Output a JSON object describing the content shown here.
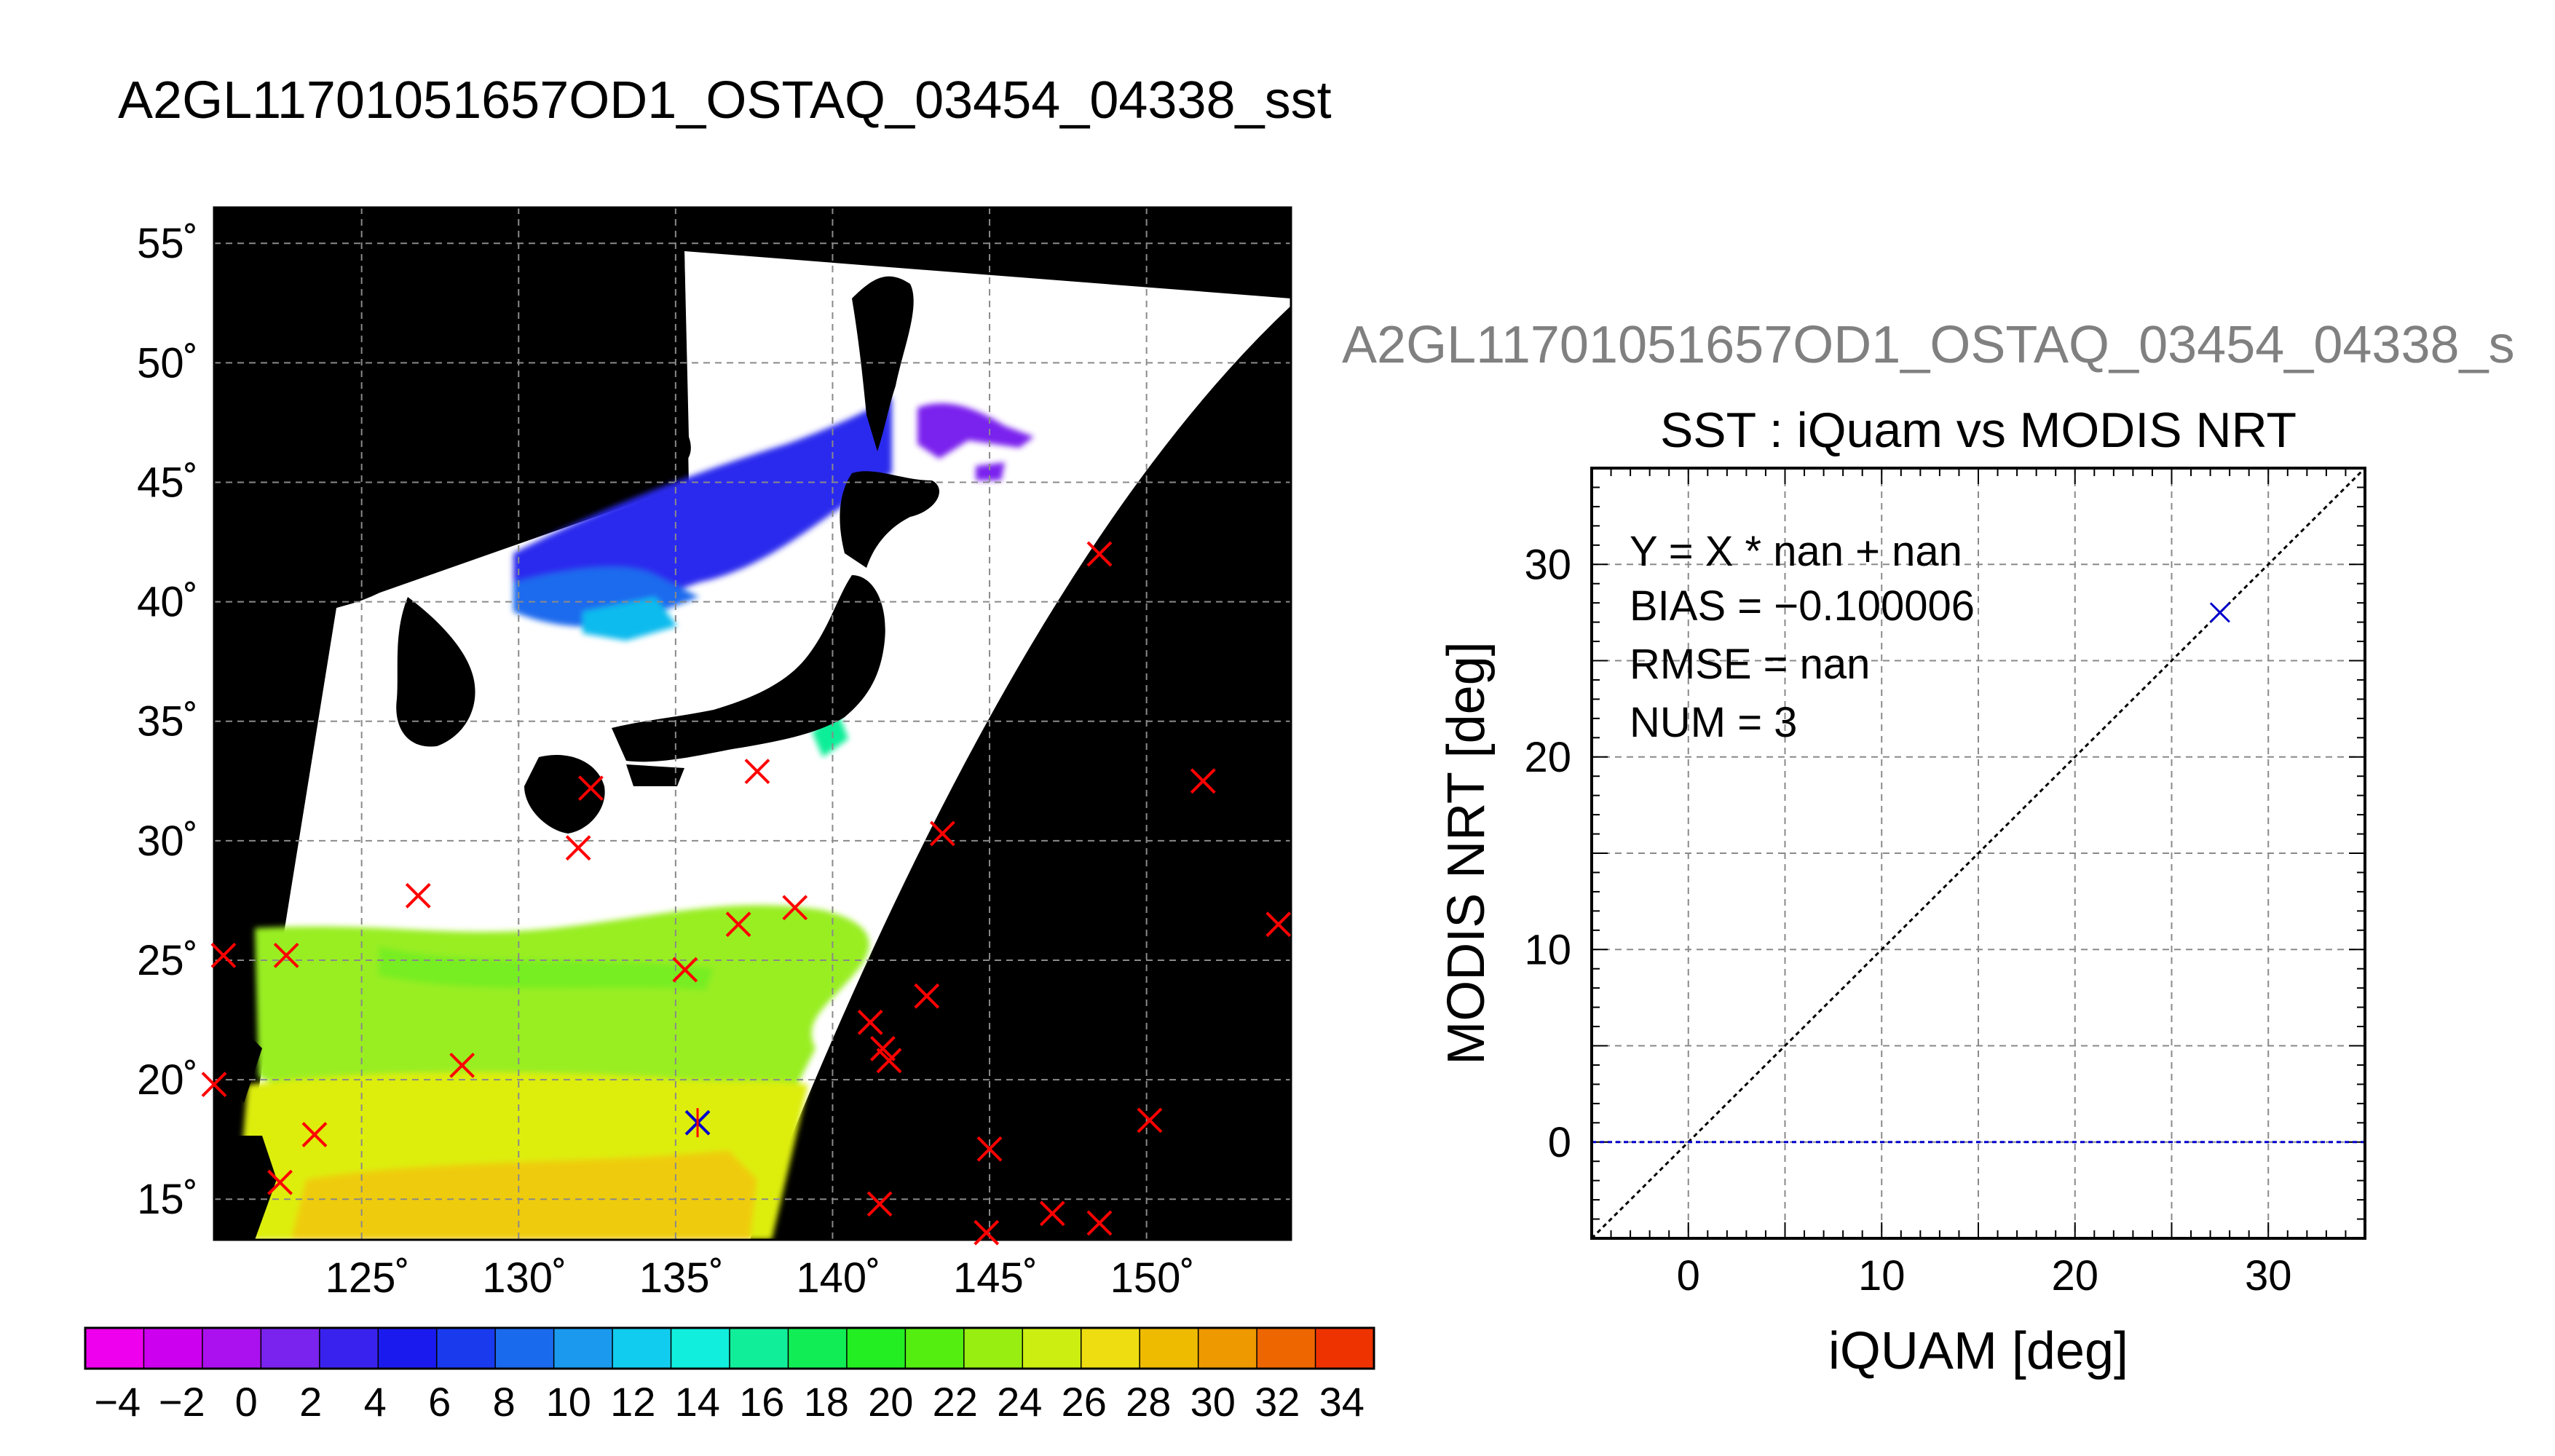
{
  "main_title": "A2GL11701051657OD1_OSTAQ_03454_04338_sst",
  "map": {
    "lon_ticks": [
      125,
      130,
      135,
      140,
      145,
      150
    ],
    "lat_ticks": [
      15,
      20,
      25,
      30,
      35,
      40,
      45,
      50,
      55
    ],
    "lon_labels": [
      "125˚",
      "130˚",
      "135˚",
      "140˚",
      "145˚",
      "150˚"
    ],
    "lat_labels": [
      "15˚",
      "20˚",
      "25˚",
      "30˚",
      "35˚",
      "40˚",
      "45˚",
      "50˚",
      "55˚"
    ],
    "lon_range": [
      120.3,
      154.6
    ],
    "lat_range": [
      13.3,
      56.5
    ],
    "background_color": "#000000",
    "marker_color": "#ff0000",
    "matched_marker_color": "#0000cc",
    "markers": [
      {
        "lon": 148.5,
        "lat": 42.0
      },
      {
        "lon": 137.6,
        "lat": 32.9
      },
      {
        "lon": 132.3,
        "lat": 32.2
      },
      {
        "lon": 131.9,
        "lat": 29.7
      },
      {
        "lon": 143.5,
        "lat": 30.3
      },
      {
        "lon": 151.8,
        "lat": 32.5
      },
      {
        "lon": 126.8,
        "lat": 27.7
      },
      {
        "lon": 138.8,
        "lat": 27.2
      },
      {
        "lon": 137.0,
        "lat": 26.5
      },
      {
        "lon": 154.2,
        "lat": 26.5
      },
      {
        "lon": 120.6,
        "lat": 25.2
      },
      {
        "lon": 122.6,
        "lat": 25.2
      },
      {
        "lon": 135.3,
        "lat": 24.6
      },
      {
        "lon": 143.0,
        "lat": 23.5
      },
      {
        "lon": 141.2,
        "lat": 22.4
      },
      {
        "lon": 141.6,
        "lat": 21.3
      },
      {
        "lon": 141.8,
        "lat": 20.8
      },
      {
        "lon": 128.2,
        "lat": 20.6
      },
      {
        "lon": 120.3,
        "lat": 19.8
      },
      {
        "lon": 150.1,
        "lat": 18.3
      },
      {
        "lon": 123.5,
        "lat": 17.7
      },
      {
        "lon": 145.0,
        "lat": 17.1
      },
      {
        "lon": 122.4,
        "lat": 15.7
      },
      {
        "lon": 141.5,
        "lat": 14.8
      },
      {
        "lon": 147.0,
        "lat": 14.4
      },
      {
        "lon": 148.5,
        "lat": 14.0
      },
      {
        "lon": 144.9,
        "lat": 13.6
      }
    ],
    "matched_markers": [
      {
        "lon": 135.7,
        "lat": 18.2
      }
    ]
  },
  "colorbar": {
    "min": -5,
    "max": 35,
    "step": 2,
    "tick_labels": [
      "−4",
      "−2",
      "0",
      "2",
      "4",
      "6",
      "8",
      "10",
      "12",
      "14",
      "16",
      "18",
      "20",
      "22",
      "24",
      "26",
      "28",
      "30",
      "32",
      "34"
    ],
    "colors": [
      "#ee00ee",
      "#cc00ee",
      "#aa11ee",
      "#7a22ee",
      "#3a22ee",
      "#1a1aee",
      "#1a3aee",
      "#1a6aee",
      "#1a99ee",
      "#11ccee",
      "#11eedd",
      "#11ee99",
      "#11ee55",
      "#22ee22",
      "#55ee11",
      "#99ee11",
      "#ccee11",
      "#eedd11",
      "#eebb00",
      "#ee9900",
      "#ee6600",
      "#ee3300"
    ]
  },
  "scatter": {
    "file_label": "A2GL11701051657OD1_OSTAQ_03454_04338_s",
    "title": "SST : iQuam vs MODIS NRT",
    "xlabel": "iQUAM [deg]",
    "ylabel": "MODIS NRT [deg]",
    "stats": {
      "fit": "Y = X * nan + nan",
      "bias": "BIAS = −0.100006",
      "rmse": "RMSE = nan",
      "num": "NUM = 3"
    }
  },
  "chart_data": [
    {
      "type": "scatter",
      "title": "SST : iQuam vs MODIS NRT",
      "xlabel": "iQUAM [deg]",
      "ylabel": "MODIS NRT [deg]",
      "xlim": [
        -5,
        35
      ],
      "ylim": [
        -5,
        35
      ],
      "xticks": [
        0,
        10,
        20,
        30
      ],
      "yticks": [
        0,
        10,
        20,
        30
      ],
      "grid": true,
      "points_color": "#0000cc",
      "points": [
        {
          "x": 27.5,
          "y": 27.5
        }
      ],
      "reference_lines": [
        {
          "kind": "one_to_one",
          "color": "#000000"
        },
        {
          "kind": "horizontal",
          "y": 0,
          "color": "#0000cc"
        }
      ]
    },
    {
      "type": "heatmap",
      "title": "A2GL11701051657OD1_OSTAQ_03454_04338_sst",
      "xlabel": "",
      "ylabel": "",
      "xlim": [
        120.3,
        154.6
      ],
      "ylim": [
        13.3,
        56.5
      ],
      "colorbar_range": [
        -5,
        35
      ],
      "grid": true
    }
  ]
}
